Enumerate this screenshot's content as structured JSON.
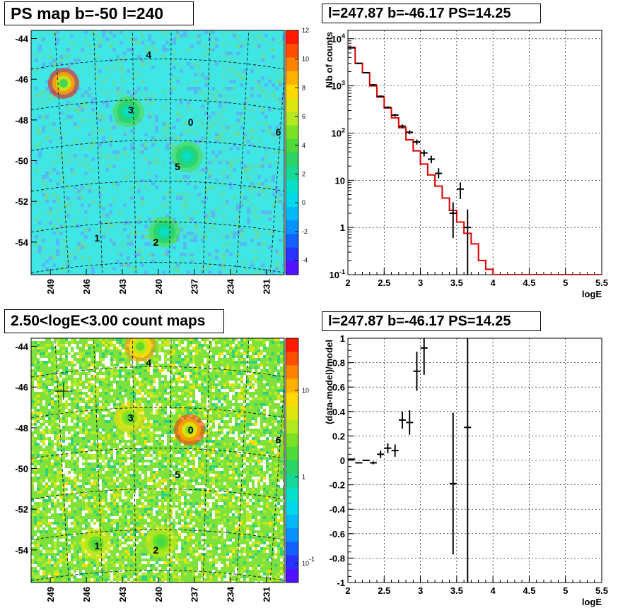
{
  "titles": {
    "map_top": "PS map b=-50 l=240",
    "spec_top": "l=247.87 b=-46.17 PS=14.25",
    "map_bottom": "2.50<logE<3.00 count maps",
    "spec_bottom": "l=247.87 b=-46.17 PS=14.25"
  },
  "colors": {
    "ps_map_base": "#3fe6e6",
    "count_map_base": "#7ee23a",
    "model_line": "#e00000",
    "data_marks": "#000000"
  },
  "chart_data": [
    {
      "type": "heatmap",
      "name_shown": "PS map b=-50 l=240",
      "x_ticks": [
        "249",
        "246",
        "243",
        "240",
        "237",
        "234",
        "231"
      ],
      "y_ticks": [
        "-44",
        "-46",
        "-48",
        "-50",
        "-52",
        "-54"
      ],
      "colorbar_ticks": [
        "12",
        "10",
        "8",
        "6",
        "4",
        "2",
        "0",
        "-2",
        "-4"
      ],
      "colorbar_range": [
        -5,
        12
      ],
      "sources": [
        {
          "label": "4",
          "l": 240.8,
          "b": -44.8
        },
        {
          "label": "3",
          "l": 242.3,
          "b": -47.5
        },
        {
          "label": "0",
          "l": 237.3,
          "b": -48.1
        },
        {
          "label": "6",
          "l": 230.0,
          "b": -48.6
        },
        {
          "label": "5",
          "l": 238.4,
          "b": -50.3
        },
        {
          "label": "1",
          "l": 245.1,
          "b": -53.8
        },
        {
          "label": "2",
          "l": 240.2,
          "b": -54.0
        }
      ],
      "hotspots": [
        {
          "l": 247.9,
          "b": -46.2,
          "value": 12
        },
        {
          "l": 242.5,
          "b": -47.6,
          "value": 4
        },
        {
          "l": 237.6,
          "b": -49.8,
          "value": 4
        },
        {
          "l": 239.5,
          "b": -53.5,
          "value": 4
        }
      ]
    },
    {
      "type": "line",
      "y_scale": "log",
      "xlabel": "logE",
      "ylabel": "Nb of counts",
      "xlim": [
        2,
        5.5
      ],
      "ylim": [
        0.1,
        15000
      ],
      "x_ticks": [
        "2",
        "2.5",
        "3",
        "3.5",
        "4",
        "4.5",
        "5",
        "5.5"
      ],
      "y_ticks": [
        "10^4",
        "10^3",
        "10^2",
        "10",
        "1",
        "10^-1"
      ],
      "model_step": {
        "edges": [
          2.0,
          2.1,
          2.2,
          2.3,
          2.4,
          2.5,
          2.6,
          2.7,
          2.8,
          2.9,
          3.0,
          3.1,
          3.2,
          3.3,
          3.4,
          3.5,
          3.6,
          3.7,
          3.8,
          3.9,
          4.0,
          5.5
        ],
        "values": [
          6500,
          3000,
          1900,
          1000,
          580,
          340,
          210,
          130,
          72,
          42,
          22,
          13,
          7.5,
          4.2,
          2.3,
          1.3,
          0.75,
          0.45,
          0.2,
          0.13,
          0.1
        ]
      },
      "data_points": [
        {
          "x": 2.05,
          "y": 6400,
          "ylo": 6200,
          "yhi": 6600
        },
        {
          "x": 2.15,
          "y": 3000,
          "ylo": 2900,
          "yhi": 3100
        },
        {
          "x": 2.25,
          "y": 1900,
          "ylo": 1830,
          "yhi": 1970
        },
        {
          "x": 2.35,
          "y": 1050,
          "ylo": 1000,
          "yhi": 1100
        },
        {
          "x": 2.45,
          "y": 600,
          "ylo": 570,
          "yhi": 630
        },
        {
          "x": 2.55,
          "y": 350,
          "ylo": 330,
          "yhi": 370
        },
        {
          "x": 2.65,
          "y": 240,
          "ylo": 225,
          "yhi": 255
        },
        {
          "x": 2.75,
          "y": 140,
          "ylo": 128,
          "yhi": 152
        },
        {
          "x": 2.85,
          "y": 104,
          "ylo": 94,
          "yhi": 114
        },
        {
          "x": 2.95,
          "y": 65,
          "ylo": 57,
          "yhi": 73
        },
        {
          "x": 3.05,
          "y": 38,
          "ylo": 32,
          "yhi": 44
        },
        {
          "x": 3.15,
          "y": 28,
          "ylo": 23,
          "yhi": 33
        },
        {
          "x": 3.25,
          "y": 14,
          "ylo": 11,
          "yhi": 18
        },
        {
          "x": 3.45,
          "y": 2,
          "ylo": 0.6,
          "yhi": 3.4
        },
        {
          "x": 3.55,
          "y": 6.5,
          "ylo": 4.0,
          "yhi": 9.0
        },
        {
          "x": 3.65,
          "y": 1,
          "ylo": 0.1,
          "yhi": 2.4
        }
      ]
    },
    {
      "type": "heatmap",
      "name_shown": "2.50<logE<3.00 count maps",
      "x_ticks": [
        "249",
        "246",
        "243",
        "240",
        "237",
        "234",
        "231"
      ],
      "y_ticks": [
        "-44",
        "-46",
        "-48",
        "-50",
        "-52",
        "-54"
      ],
      "colorbar_ticks": [
        "10",
        "1",
        "10^-1"
      ],
      "colorbar_scale": "log",
      "colorbar_range": [
        0.06,
        40
      ],
      "sources": [
        {
          "label": "4",
          "l": 240.8,
          "b": -44.8
        },
        {
          "label": "3",
          "l": 242.3,
          "b": -47.5
        },
        {
          "label": "0",
          "l": 237.3,
          "b": -48.1
        },
        {
          "label": "6",
          "l": 230.0,
          "b": -48.6
        },
        {
          "label": "5",
          "l": 238.4,
          "b": -50.3
        },
        {
          "label": "1",
          "l": 245.1,
          "b": -53.8
        },
        {
          "label": "2",
          "l": 240.2,
          "b": -54.0
        }
      ],
      "hotspots": [
        {
          "l": 237.4,
          "b": -48.1,
          "value": 30
        },
        {
          "l": 241.5,
          "b": -44.0,
          "value": 15
        },
        {
          "l": 242.4,
          "b": -47.5,
          "value": 8
        },
        {
          "l": 245.2,
          "b": -53.7,
          "value": 6
        },
        {
          "l": 239.8,
          "b": -53.6,
          "value": 5
        }
      ],
      "marker": {
        "l": 247.9,
        "b": -46.2
      }
    },
    {
      "type": "scatter",
      "xlabel": "logE",
      "ylabel": "(data-model)/model",
      "xlim": [
        2,
        5.5
      ],
      "ylim": [
        -1,
        1
      ],
      "x_ticks": [
        "2",
        "2.5",
        "3",
        "3.5",
        "4",
        "4.5",
        "5",
        "5.5"
      ],
      "y_ticks": [
        "1",
        "0.8",
        "0.6",
        "0.4",
        "0.2",
        "0",
        "-0.2",
        "-0.4",
        "-0.6",
        "-0.8",
        "-1"
      ],
      "data_points": [
        {
          "x": 2.05,
          "y": 0.01,
          "err": 0.004
        },
        {
          "x": 2.15,
          "y": -0.02,
          "err": 0.005
        },
        {
          "x": 2.25,
          "y": 0.0,
          "err": 0.006
        },
        {
          "x": 2.35,
          "y": -0.02,
          "err": 0.012
        },
        {
          "x": 2.45,
          "y": 0.05,
          "err": 0.03
        },
        {
          "x": 2.55,
          "y": 0.1,
          "err": 0.04
        },
        {
          "x": 2.65,
          "y": 0.08,
          "err": 0.05
        },
        {
          "x": 2.75,
          "y": 0.33,
          "err": 0.07
        },
        {
          "x": 2.85,
          "y": 0.31,
          "err": 0.1
        },
        {
          "x": 2.95,
          "y": 0.73,
          "err": 0.16
        },
        {
          "x": 3.05,
          "y": 0.92,
          "err": 0.22
        },
        {
          "x": 3.45,
          "y": -0.19,
          "err": 0.58
        },
        {
          "x": 3.65,
          "y": 0.27,
          "err": 1.4
        }
      ]
    }
  ]
}
